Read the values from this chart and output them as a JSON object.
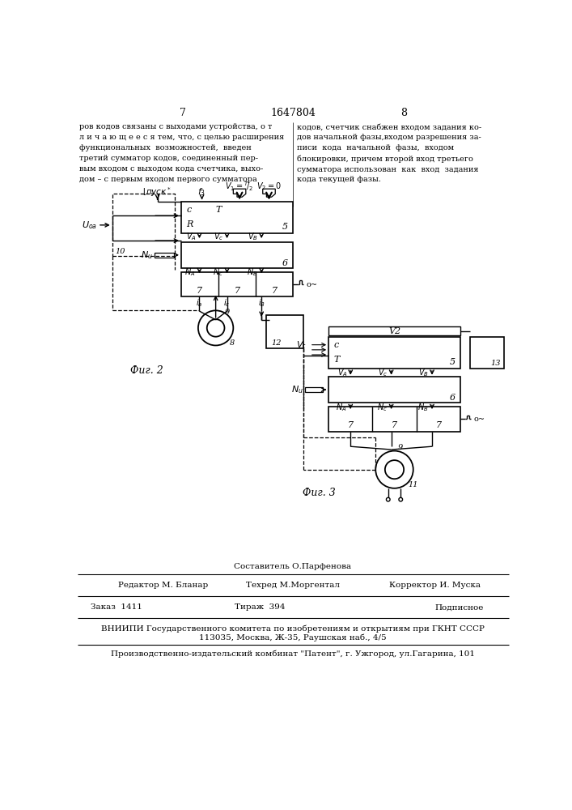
{
  "page_number_left": "7",
  "page_number_center": "1647804",
  "page_number_right": "8",
  "text_left": "ров кодов связаны с выходами устройства, о т​\nл и ч а ю щ е е с я тем, что, с целью расширения\nфункциональных  возможностей,  введен\nтретий сумматор кодов, соединенный пер-\nвым входом с выходом кода счетчика, выхо-\nдом – с первым входом первого сумматора",
  "text_right": "кодов, счетчик снабжен входом задания ко-\nдов начальной фазы,входом разрешения за-\nписи  кода  начальной  фазы,  входом\nблокировки, причем второй вход третьего\nсумматора использован  как  вход  задания\nкода текущей фазы.",
  "fig2_label": "Фиг. 2",
  "fig3_label": "Фиг. 3",
  "col1_bottom": "Редактор М. Бланар",
  "col2_bottom_top": "Составитель О.Парфенова",
  "col2_bottom": "Техред М.Моргентал",
  "col3_bottom": "Корректор И. Муска",
  "zakaz": "Заказ  1411",
  "tirazh": "Тираж  394",
  "podpisnoe": "Подписное",
  "vniiipi1": "ВНИИПИ Государственного комитета по изобретениям и открытиям при ГКНТ СССР",
  "vniiipi2": "113035, Москва, Ж-35, Раушская наб., 4/5",
  "patent_line": "Производственно-издательский комбинат \"Патент\", г. Ужгород, ул.Гагарина, 101",
  "bg_color": "#ffffff",
  "lc": "#000000"
}
